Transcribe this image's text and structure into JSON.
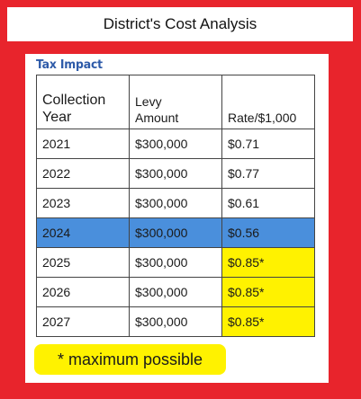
{
  "title": "District's Cost Analysis",
  "subtitle": "Tax Impact",
  "table": {
    "headers": {
      "year_line1": "Collection",
      "year_line2": "Year",
      "levy_line1": "Levy",
      "levy_line2": "Amount",
      "rate": "Rate/$1,000"
    },
    "rows": [
      {
        "year": "2021",
        "levy": "$300,000",
        "rate": "$0.71"
      },
      {
        "year": "2022",
        "levy": "$300,000",
        "rate": "$0.77"
      },
      {
        "year": "2023",
        "levy": "$300,000",
        "rate": "$0.61"
      },
      {
        "year": "2024",
        "levy": "$300,000",
        "rate": "$0.56"
      },
      {
        "year": "2025",
        "levy": "$300,000",
        "rate": "$0.85*"
      },
      {
        "year": "2026",
        "levy": "$300,000",
        "rate": "$0.85*"
      },
      {
        "year": "2027",
        "levy": "$300,000",
        "rate": "$0.85*"
      }
    ]
  },
  "footnote": "* maximum possible",
  "colors": {
    "frame": "#e8242c",
    "highlight_row": "#4a8fdc",
    "max_rate": "#fff200",
    "subtitle": "#2d5aa8"
  }
}
